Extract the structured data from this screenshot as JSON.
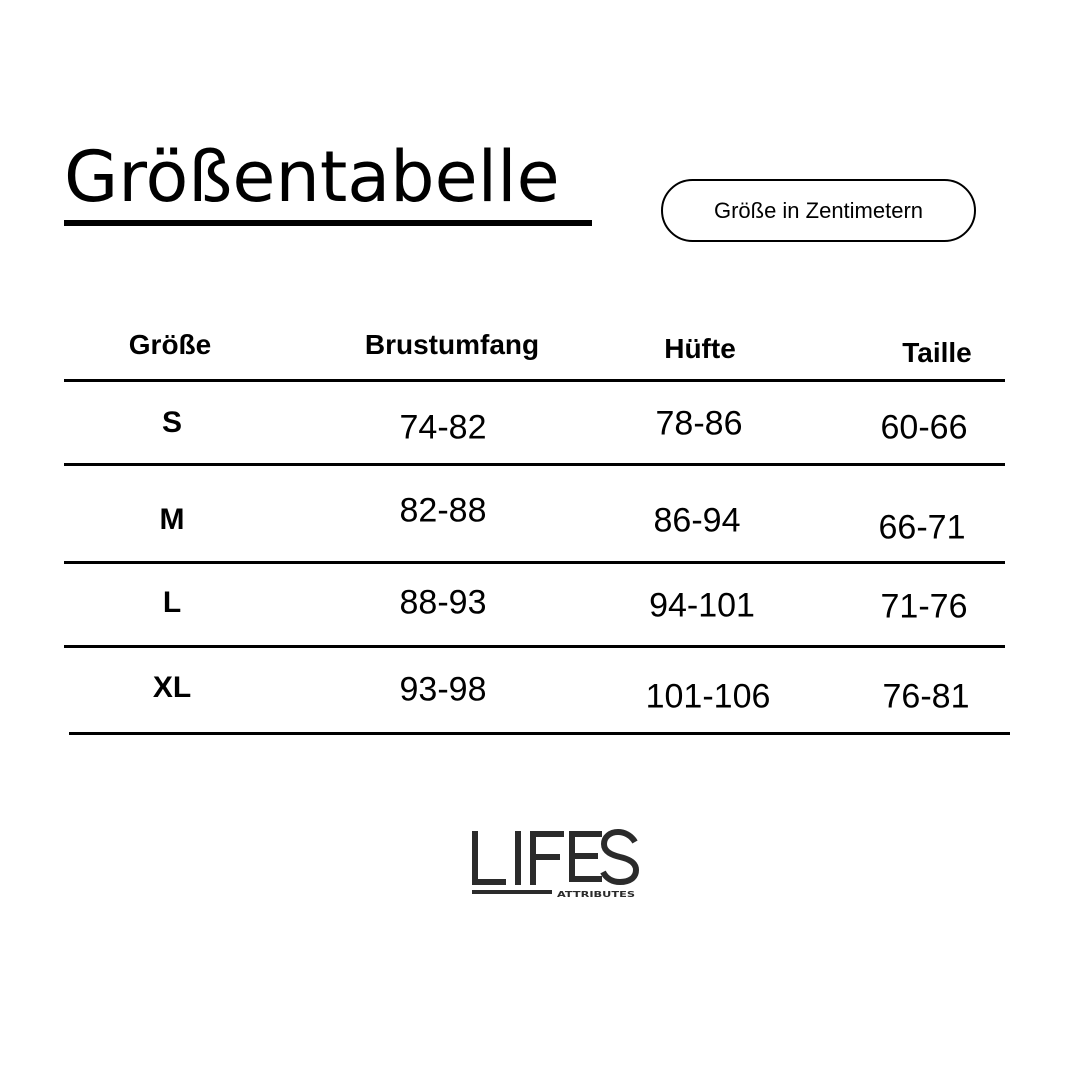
{
  "title": "Größentabelle",
  "unit_badge": "Größe in Zentimetern",
  "table": {
    "headers": [
      "Größe",
      "Brustumfang",
      "Hüfte",
      "Taille"
    ],
    "rows": [
      [
        "S",
        "74-82",
        "78-86",
        "60-66"
      ],
      [
        "M",
        "82-88",
        "86-94",
        "66-71"
      ],
      [
        "L",
        "88-93",
        "94-101",
        "71-76"
      ],
      [
        "XL",
        "93-98",
        "101-106",
        "76-81"
      ]
    ]
  },
  "logo": {
    "name": "LIFES",
    "sub": "ATTRIBUTES",
    "color": "#2b2b2b"
  }
}
